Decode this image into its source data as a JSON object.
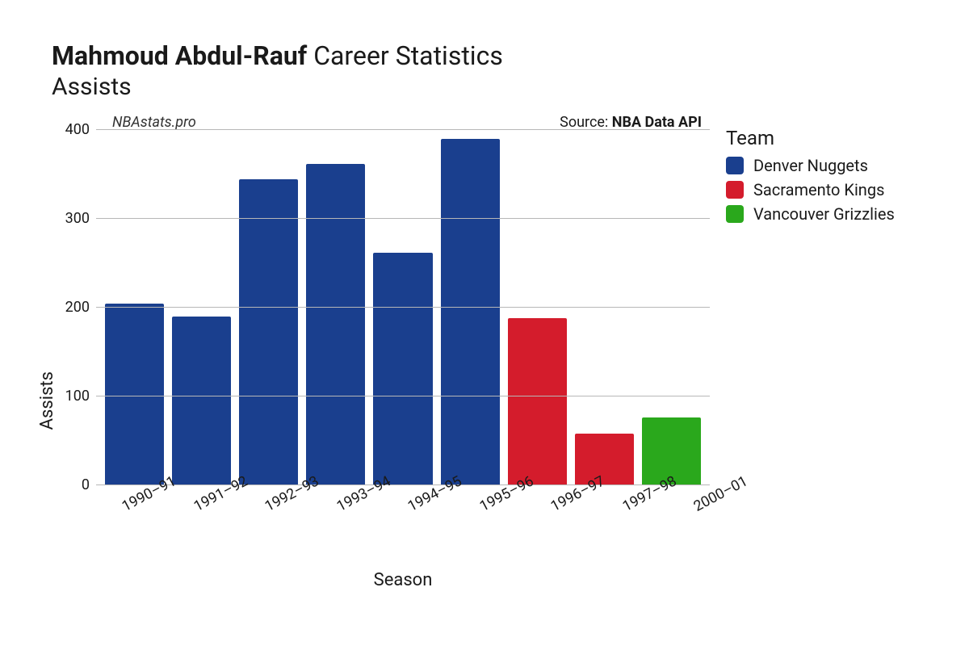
{
  "title_bold": "Mahmoud Abdul-Rauf",
  "title_rest": " Career Statistics",
  "subtitle": "Assists",
  "watermark": "NBAstats.pro",
  "source_prefix": "Source: ",
  "source_bold": "NBA Data API",
  "chart": {
    "type": "bar",
    "y_label": "Assists",
    "x_label": "Season",
    "ylim": [
      0,
      400
    ],
    "ytick_step": 100,
    "yticks": [
      400,
      300,
      200,
      100,
      0
    ],
    "grid_color": "#b7b7b7",
    "background_color": "#ffffff",
    "bar_width_pct": 88,
    "bar_border_radius": 2,
    "categories": [
      "1990–91",
      "1991–92",
      "1992–93",
      "1993–94",
      "1994–95",
      "1995–96",
      "1996–97",
      "1997–98",
      "2000–01"
    ],
    "values": [
      205,
      190,
      345,
      362,
      262,
      390,
      188,
      58,
      76
    ],
    "teams": [
      "Denver Nuggets",
      "Denver Nuggets",
      "Denver Nuggets",
      "Denver Nuggets",
      "Denver Nuggets",
      "Denver Nuggets",
      "Sacramento Kings",
      "Sacramento Kings",
      "Vancouver Grizzlies"
    ],
    "team_colors": {
      "Denver Nuggets": "#1a3f8e",
      "Sacramento Kings": "#d41c2c",
      "Vancouver Grizzlies": "#2aa81c"
    },
    "legend_title": "Team",
    "legend_order": [
      "Denver Nuggets",
      "Sacramento Kings",
      "Vancouver Grizzlies"
    ]
  },
  "typography": {
    "title_fontsize": 32,
    "subtitle_fontsize": 30,
    "axis_label_fontsize": 22,
    "tick_fontsize": 18,
    "legend_title_fontsize": 24,
    "legend_item_fontsize": 20
  }
}
